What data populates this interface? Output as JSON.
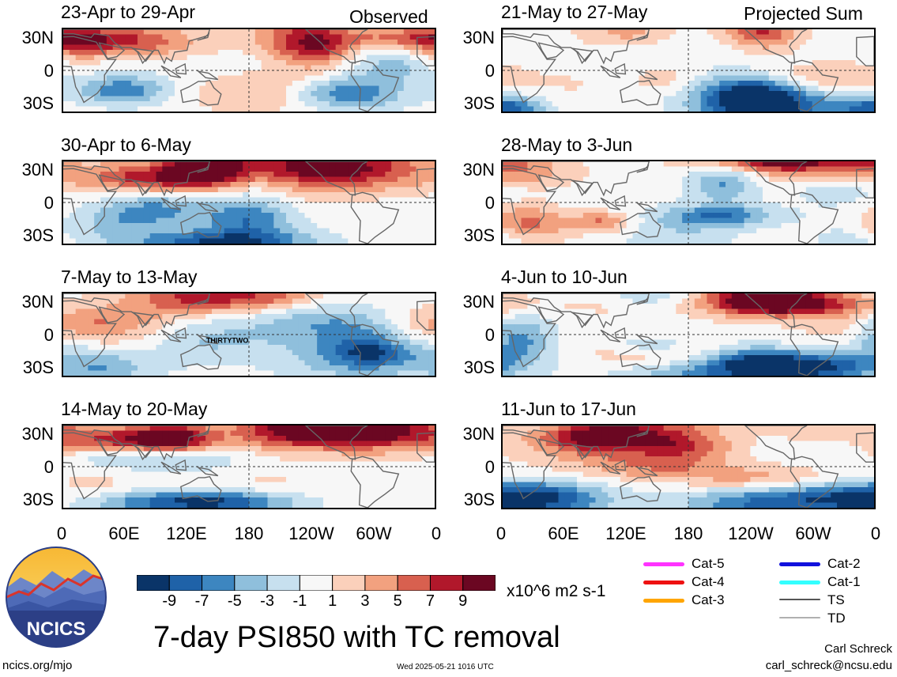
{
  "headers": {
    "left": "Observed",
    "right": "Projected Sum"
  },
  "panels_left": [
    {
      "title": "23-Apr to 29-Apr",
      "seed": 3
    },
    {
      "title": "30-Apr to 6-May",
      "seed": 7
    },
    {
      "title": "7-May to 13-May",
      "seed": 11,
      "annotation": "THIRTYTWO"
    },
    {
      "title": "14-May to 20-May",
      "seed": 17
    }
  ],
  "panels_right": [
    {
      "title": "21-May to 27-May",
      "seed": 23
    },
    {
      "title": "28-May to 3-Jun",
      "seed": 29
    },
    {
      "title": "4-Jun to 10-Jun",
      "seed": 31
    },
    {
      "title": "11-Jun to 17-Jun",
      "seed": 37
    }
  ],
  "y_ticks": [
    "30N",
    "0",
    "30S"
  ],
  "x_ticks": [
    "0",
    "60E",
    "120E",
    "180",
    "120W",
    "60W",
    "0"
  ],
  "chart_data": {
    "type": "heatmap",
    "variable": "7-day PSI850 with TC removal",
    "units": "x10^6 m2 s-1",
    "colorbar": {
      "tick_labels": [
        "-9",
        "-7",
        "-5",
        "-3",
        "-1",
        "1",
        "3",
        "5",
        "7",
        "9"
      ],
      "colors": [
        "#0a3468",
        "#1f62a8",
        "#3d86c0",
        "#8fbfdc",
        "#c7e0ef",
        "#f7f7f7",
        "#fbd0bb",
        "#f2a17f",
        "#d8604f",
        "#b1182b",
        "#6b0722"
      ]
    }
  },
  "tc_legend": [
    {
      "label": "Cat-5",
      "color": "#ff33ff"
    },
    {
      "label": "Cat-4",
      "color": "#ee1111"
    },
    {
      "label": "Cat-3",
      "color": "#ffa500"
    },
    {
      "label": "Cat-2",
      "color": "#1111dd"
    },
    {
      "label": "Cat-1",
      "color": "#33ffff"
    },
    {
      "label": "TS",
      "color": "#555555"
    },
    {
      "label": "TD",
      "color": "#b0b0b0"
    }
  ],
  "logo_text": "NCICS",
  "main_title": "7-day PSI850 with TC removal",
  "footer": {
    "left": "ncics.org/mjo",
    "center": "Wed 2025-05-21 1016 UTC",
    "author": "Carl Schreck",
    "email": "carl_schreck@ncsu.edu"
  }
}
